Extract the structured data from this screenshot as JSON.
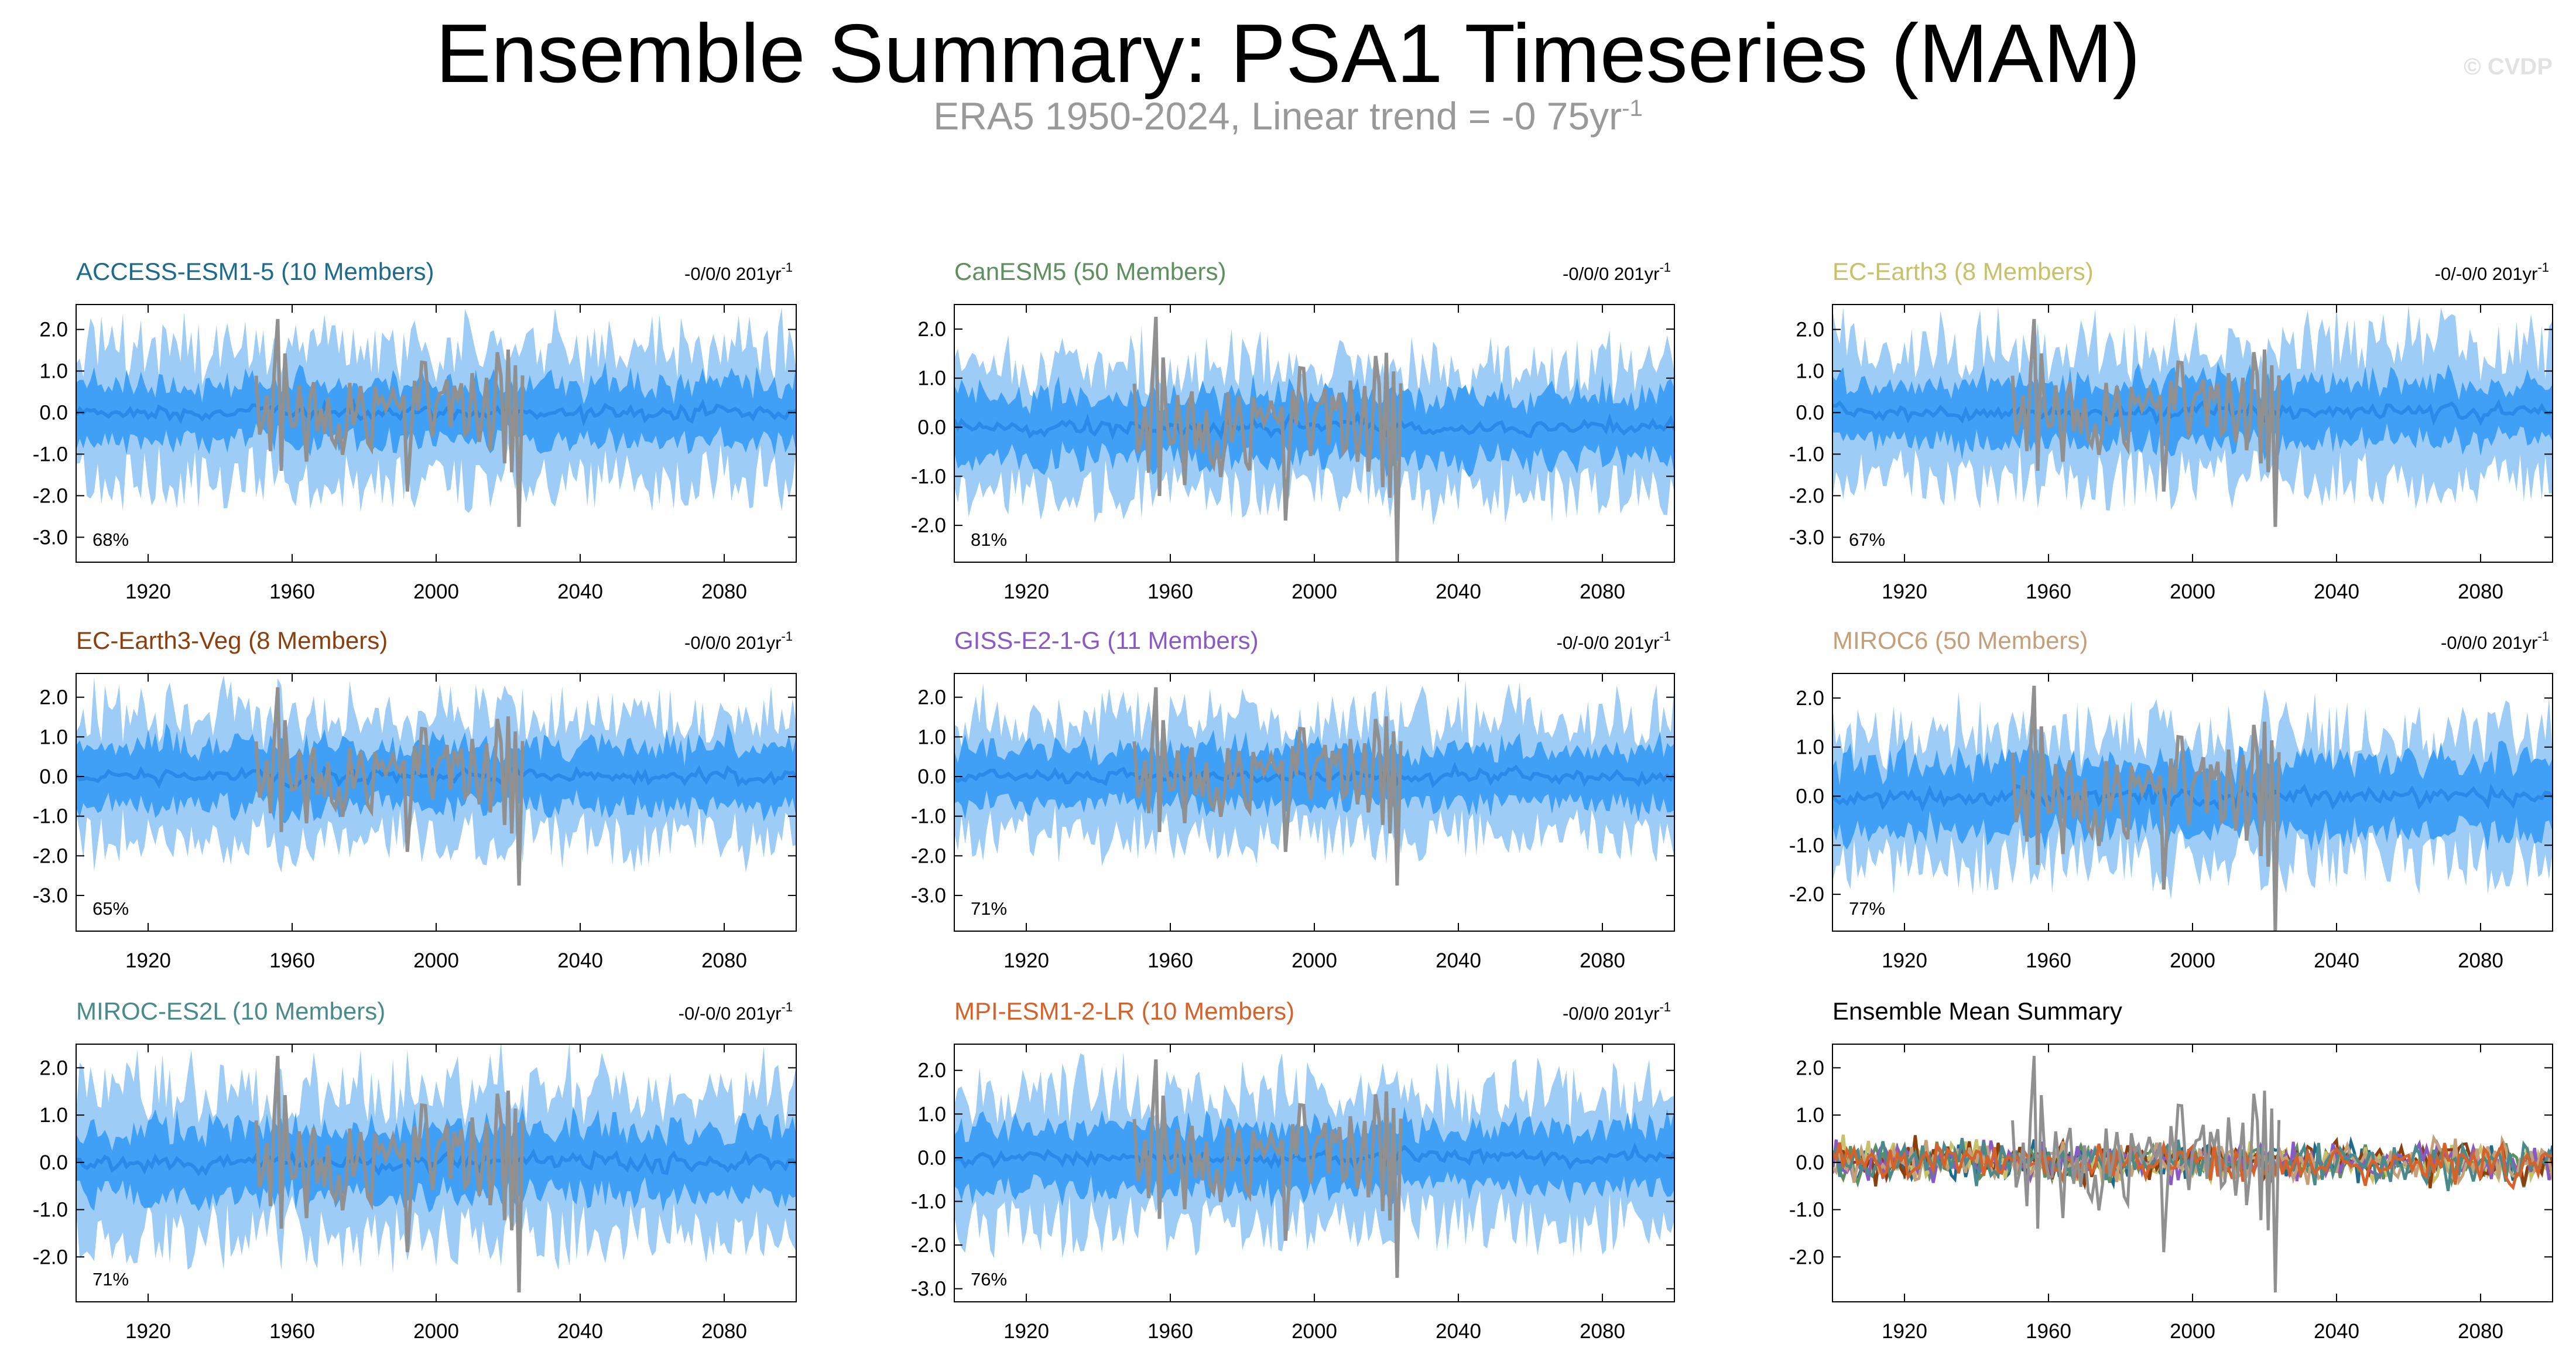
{
  "header": {
    "title": "Ensemble Summary: PSA1 Timeseries (MAM)",
    "subtitle": "ERA5 1950-2024, Linear trend = -0 75yr",
    "subtitle_sup": "-1",
    "watermark": "© CVDP"
  },
  "colors": {
    "band_outer": "#9dccf7",
    "band_inner": "#3fa0f5",
    "ensemble_mean_line": "#2a8ae8",
    "observations_line": "#909090"
  },
  "chart_data": [
    {
      "type": "area",
      "title": "ACCESS-ESM1-5 (10 Members)",
      "title_color": "#1d6b8c",
      "trend_text": "-0/0/0 201yr",
      "trend_sup": "-1",
      "percent_label": "68%",
      "seed": 11,
      "ylim": [
        -3.6,
        2.6
      ],
      "yticks": [
        "2.0",
        "1.0",
        "0.0",
        "-1.0",
        "-2.0",
        "-3.0"
      ],
      "ytick_values": [
        2,
        1,
        0,
        -1,
        -2,
        -3
      ],
      "xlim": [
        1900,
        2100
      ],
      "xticks": [
        "1920",
        "1960",
        "2000",
        "2040",
        "2080"
      ],
      "xtick_values": [
        1920,
        1960,
        2000,
        2040,
        2080
      ],
      "inner_spread": 0.7,
      "outer_spread": 1.6,
      "obs_range": [
        1950,
        2024
      ],
      "series": [
        "ensemble 10-90% range",
        "ensemble 25-75% range",
        "ensemble mean",
        "ERA5 observations"
      ]
    },
    {
      "type": "area",
      "title": "CanESM5 (50 Members)",
      "title_color": "#5e8f5e",
      "trend_text": "-0/0/0 201yr",
      "trend_sup": "-1",
      "percent_label": "81%",
      "seed": 23,
      "ylim": [
        -2.75,
        2.5
      ],
      "yticks": [
        "2.0",
        "1.0",
        "0.0",
        "-1.0",
        "-2.0"
      ],
      "ytick_values": [
        2,
        1,
        0,
        -1,
        -2
      ],
      "xlim": [
        1900,
        2100
      ],
      "xticks": [
        "1920",
        "1960",
        "2000",
        "2040",
        "2080"
      ],
      "xtick_values": [
        1920,
        1960,
        2000,
        2040,
        2080
      ],
      "inner_spread": 0.65,
      "outer_spread": 1.3,
      "obs_range": [
        1950,
        2024
      ],
      "series": [
        "ensemble 10-90% range",
        "ensemble 25-75% range",
        "ensemble mean",
        "ERA5 observations"
      ]
    },
    {
      "type": "area",
      "title": "EC-Earth3 (8 Members)",
      "title_color": "#c9c06a",
      "trend_text": "-0/-0/0 201yr",
      "trend_sup": "-1",
      "percent_label": "67%",
      "seed": 37,
      "ylim": [
        -3.6,
        2.6
      ],
      "yticks": [
        "2.0",
        "1.0",
        "0.0",
        "-1.0",
        "-2.0",
        "-3.0"
      ],
      "ytick_values": [
        2,
        1,
        0,
        -1,
        -2,
        -3
      ],
      "xlim": [
        1900,
        2100
      ],
      "xticks": [
        "1920",
        "1960",
        "2000",
        "2040",
        "2080"
      ],
      "xtick_values": [
        1920,
        1960,
        2000,
        2040,
        2080
      ],
      "inner_spread": 0.7,
      "outer_spread": 1.6,
      "obs_range": [
        1950,
        2024
      ],
      "series": [
        "ensemble 10-90% range",
        "ensemble 25-75% range",
        "ensemble mean",
        "ERA5 observations"
      ]
    },
    {
      "type": "area",
      "title": "EC-Earth3-Veg (8 Members)",
      "title_color": "#8c3f0c",
      "trend_text": "-0/0/0 201yr",
      "trend_sup": "-1",
      "percent_label": "65%",
      "seed": 41,
      "ylim": [
        -3.9,
        2.6
      ],
      "yticks": [
        "2.0",
        "1.0",
        "0.0",
        "-1.0",
        "-2.0",
        "-3.0"
      ],
      "ytick_values": [
        2,
        1,
        0,
        -1,
        -2,
        -3
      ],
      "xlim": [
        1900,
        2100
      ],
      "xticks": [
        "1920",
        "1960",
        "2000",
        "2040",
        "2080"
      ],
      "xtick_values": [
        1920,
        1960,
        2000,
        2040,
        2080
      ],
      "inner_spread": 0.75,
      "outer_spread": 1.6,
      "obs_range": [
        1950,
        2024
      ],
      "series": [
        "ensemble 10-90% range",
        "ensemble 25-75% range",
        "ensemble mean",
        "ERA5 observations"
      ]
    },
    {
      "type": "area",
      "title": "GISS-E2-1-G (11 Members)",
      "title_color": "#8a5ac4",
      "trend_text": "-0/-0/0 201yr",
      "trend_sup": "-1",
      "percent_label": "71%",
      "seed": 53,
      "ylim": [
        -3.9,
        2.6
      ],
      "yticks": [
        "2.0",
        "1.0",
        "0.0",
        "-1.0",
        "-2.0",
        "-3.0"
      ],
      "ytick_values": [
        2,
        1,
        0,
        -1,
        -2,
        -3
      ],
      "xlim": [
        1900,
        2100
      ],
      "xticks": [
        "1920",
        "1960",
        "2000",
        "2040",
        "2080"
      ],
      "xtick_values": [
        1920,
        1960,
        2000,
        2040,
        2080
      ],
      "inner_spread": 0.7,
      "outer_spread": 1.5,
      "obs_range": [
        1950,
        2024
      ],
      "series": [
        "ensemble 10-90% range",
        "ensemble 25-75% range",
        "ensemble mean",
        "ERA5 observations"
      ]
    },
    {
      "type": "area",
      "title": "MIROC6 (50 Members)",
      "title_color": "#c3a07a",
      "trend_text": "-0/0/0 201yr",
      "trend_sup": "-1",
      "percent_label": "77%",
      "seed": 67,
      "ylim": [
        -2.75,
        2.5
      ],
      "yticks": [
        "2.0",
        "1.0",
        "0.0",
        "-1.0",
        "-2.0"
      ],
      "ytick_values": [
        2,
        1,
        0,
        -1,
        -2
      ],
      "xlim": [
        1900,
        2100
      ],
      "xticks": [
        "1920",
        "1960",
        "2000",
        "2040",
        "2080"
      ],
      "xtick_values": [
        1920,
        1960,
        2000,
        2040,
        2080
      ],
      "inner_spread": 0.7,
      "outer_spread": 1.35,
      "obs_range": [
        1950,
        2024
      ],
      "series": [
        "ensemble 10-90% range",
        "ensemble 25-75% range",
        "ensemble mean",
        "ERA5 observations"
      ]
    },
    {
      "type": "area",
      "title": "MIROC-ES2L (10 Members)",
      "title_color": "#4a8a8a",
      "trend_text": "-0/-0/0 201yr",
      "trend_sup": "-1",
      "percent_label": "71%",
      "seed": 79,
      "ylim": [
        -2.95,
        2.5
      ],
      "yticks": [
        "2.0",
        "1.0",
        "0.0",
        "-1.0",
        "-2.0"
      ],
      "ytick_values": [
        2,
        1,
        0,
        -1,
        -2
      ],
      "xlim": [
        1900,
        2100
      ],
      "xticks": [
        "1920",
        "1960",
        "2000",
        "2040",
        "2080"
      ],
      "xtick_values": [
        1920,
        1960,
        2000,
        2040,
        2080
      ],
      "inner_spread": 0.7,
      "outer_spread": 1.55,
      "obs_range": [
        1950,
        2024
      ],
      "series": [
        "ensemble 10-90% range",
        "ensemble 25-75% range",
        "ensemble mean",
        "ERA5 observations"
      ]
    },
    {
      "type": "area",
      "title": "MPI-ESM1-2-LR (10 Members)",
      "title_color": "#d5622a",
      "trend_text": "-0/0/0 201yr",
      "trend_sup": "-1",
      "percent_label": "76%",
      "seed": 83,
      "ylim": [
        -3.3,
        2.6
      ],
      "yticks": [
        "2.0",
        "1.0",
        "0.0",
        "-1.0",
        "-2.0",
        "-3.0"
      ],
      "ytick_values": [
        2,
        1,
        0,
        -1,
        -2,
        -3
      ],
      "xlim": [
        1900,
        2100
      ],
      "xticks": [
        "1920",
        "1960",
        "2000",
        "2040",
        "2080"
      ],
      "xtick_values": [
        1920,
        1960,
        2000,
        2040,
        2080
      ],
      "inner_spread": 0.7,
      "outer_spread": 1.55,
      "obs_range": [
        1950,
        2024
      ],
      "series": [
        "ensemble 10-90% range",
        "ensemble 25-75% range",
        "ensemble mean",
        "ERA5 observations"
      ]
    },
    {
      "type": "line",
      "title": "Ensemble Mean Summary",
      "title_color": "#000000",
      "trend_text": "",
      "trend_sup": "",
      "percent_label": "",
      "seed": 97,
      "ylim": [
        -2.95,
        2.5
      ],
      "yticks": [
        "2.0",
        "1.0",
        "0.0",
        "-1.0",
        "-2.0"
      ],
      "ytick_values": [
        2,
        1,
        0,
        -1,
        -2
      ],
      "xlim": [
        1900,
        2100
      ],
      "xticks": [
        "1920",
        "1960",
        "2000",
        "2040",
        "2080"
      ],
      "xtick_values": [
        1920,
        1960,
        2000,
        2040,
        2080
      ],
      "obs_range": [
        1950,
        2024
      ],
      "series": [
        {
          "name": "ACCESS-ESM1-5",
          "color": "#1d6b8c"
        },
        {
          "name": "CanESM5",
          "color": "#5e8f5e"
        },
        {
          "name": "EC-Earth3",
          "color": "#c9c06a"
        },
        {
          "name": "EC-Earth3-Veg",
          "color": "#8c3f0c"
        },
        {
          "name": "GISS-E2-1-G",
          "color": "#8a5ac4"
        },
        {
          "name": "MIROC6",
          "color": "#c3a07a"
        },
        {
          "name": "MIROC-ES2L",
          "color": "#4a8a8a"
        },
        {
          "name": "MPI-ESM1-2-LR",
          "color": "#d5622a"
        },
        {
          "name": "ERA5",
          "color": "#909090"
        }
      ]
    }
  ]
}
